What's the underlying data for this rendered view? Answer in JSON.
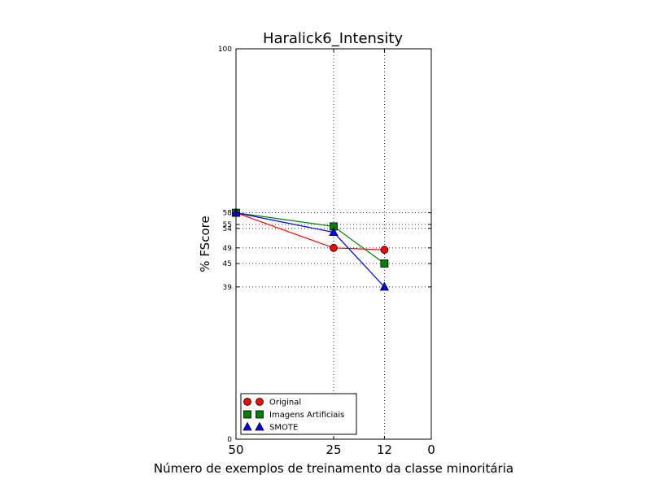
{
  "chart_data": {
    "type": "line",
    "title": "Haralick6_Intensity",
    "xlabel": "Número de exemplos de treinamento da classe minoritária",
    "ylabel": "% FScore",
    "xlim": [
      50,
      0
    ],
    "ylim": [
      0,
      100
    ],
    "x_ticks": [
      50,
      25,
      12,
      0
    ],
    "y_ticks": [
      0,
      39,
      45,
      49,
      54,
      55,
      58,
      100
    ],
    "grid": true,
    "legend_position": "lower-left",
    "series": [
      {
        "name": "Original",
        "color": "#ff0000",
        "marker": "circle",
        "x": [
          50,
          25,
          12
        ],
        "y": [
          58,
          49,
          48.5
        ]
      },
      {
        "name": "Imagens Artificiais",
        "color": "#008000",
        "marker": "square",
        "x": [
          50,
          25,
          12
        ],
        "y": [
          58,
          54.5,
          45
        ]
      },
      {
        "name": "SMOTE",
        "color": "#0000ff",
        "marker": "triangle",
        "x": [
          50,
          25,
          12
        ],
        "y": [
          58,
          53,
          39
        ]
      }
    ]
  }
}
